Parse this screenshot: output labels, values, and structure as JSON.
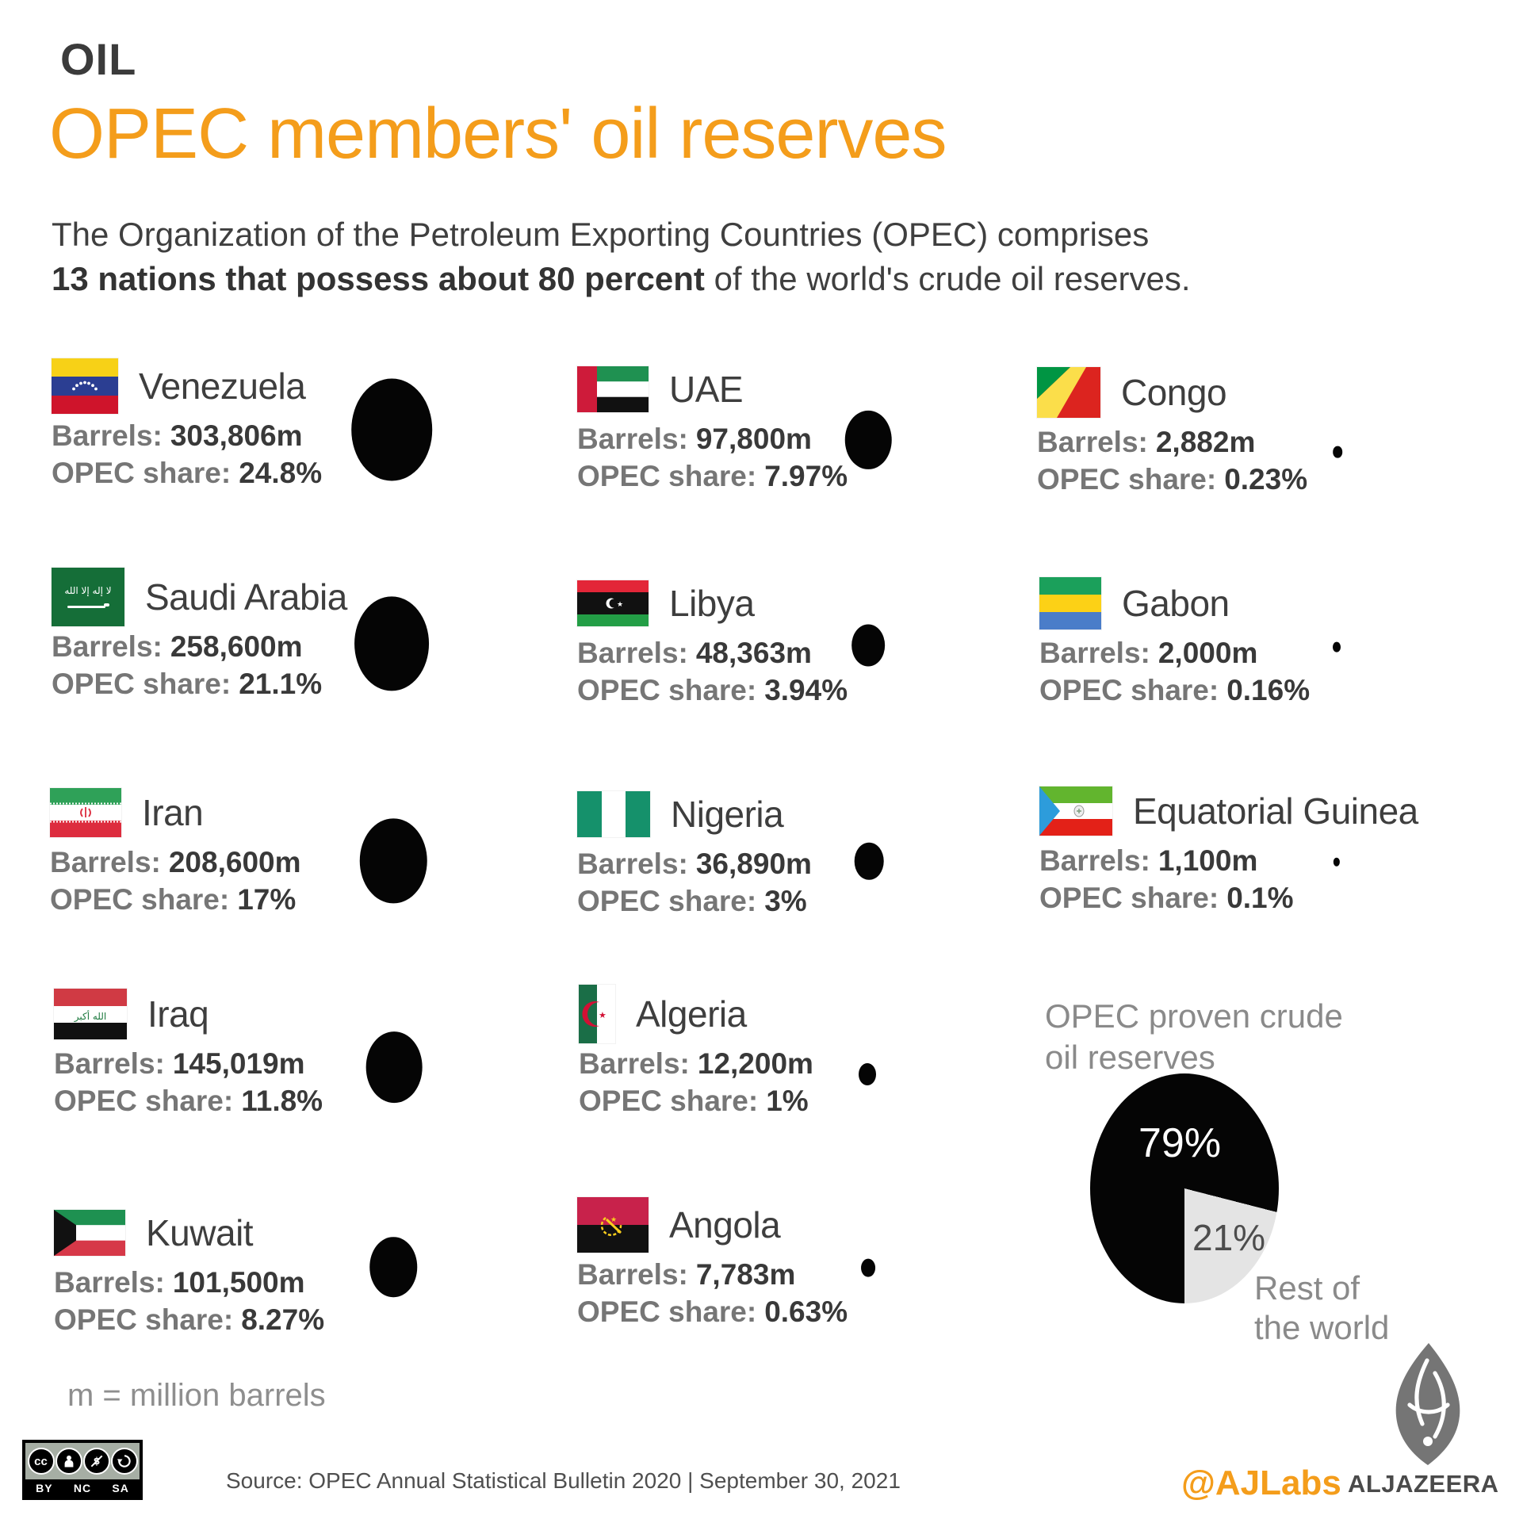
{
  "header": {
    "kicker": "OIL",
    "title": "OPEC members' oil reserves",
    "accent_color": "#F49D1B"
  },
  "intro": {
    "line1": "The Organization of the Petroleum Exporting Countries (OPEC) comprises",
    "line2_bold": "13 nations that possess about 80 percent",
    "line2_rest": " of the world's crude oil reserves."
  },
  "labels": {
    "barrels": "Barrels:",
    "share": "OPEC share:"
  },
  "countries": [
    {
      "name": "Venezuela",
      "barrels": "303,806m",
      "share": "24.8%",
      "share_value": 24.8
    },
    {
      "name": "UAE",
      "barrels": "97,800m",
      "share": "7.97%",
      "share_value": 7.97
    },
    {
      "name": "Congo",
      "barrels": "2,882m",
      "share": "0.23%",
      "share_value": 0.23
    },
    {
      "name": "Saudi Arabia",
      "barrels": "258,600m",
      "share": "21.1%",
      "share_value": 21.1
    },
    {
      "name": "Libya",
      "barrels": "48,363m",
      "share": "3.94%",
      "share_value": 3.94
    },
    {
      "name": "Gabon",
      "barrels": "2,000m",
      "share": "0.16%",
      "share_value": 0.16
    },
    {
      "name": "Iran",
      "barrels": "208,600m",
      "share": "17%",
      "share_value": 17
    },
    {
      "name": "Nigeria",
      "barrels": "36,890m",
      "share": "3%",
      "share_value": 3
    },
    {
      "name": "Equatorial Guinea",
      "barrels": "1,100m",
      "share": "0.1%",
      "share_value": 0.1
    },
    {
      "name": "Iraq",
      "barrels": "145,019m",
      "share": "11.8%",
      "share_value": 11.8
    },
    {
      "name": "Algeria",
      "barrels": "12,200m",
      "share": "1%",
      "share_value": 1
    },
    {
      "name": "Kuwait",
      "barrels": "101,500m",
      "share": "8.27%",
      "share_value": 8.27
    },
    {
      "name": "Angola",
      "barrels": "7,783m",
      "share": "0.63%",
      "share_value": 0.63
    }
  ],
  "pie": {
    "heading_line1": "OPEC proven crude",
    "heading_line2": "oil reserves",
    "opec_label": "79%",
    "opec_value": 79,
    "row_label": "21%",
    "row_value": 21,
    "rest_line1": "Rest of",
    "rest_line2": "the world",
    "slice_color_opec": "#050505",
    "slice_color_rest": "#E4E4E4"
  },
  "footnote": "m = million barrels",
  "footer": {
    "source": "Source:  OPEC Annual Statistical Bulletin 2020 |  September 30, 2021",
    "cc_license": "CC BY-NC-SA",
    "cc_labels": [
      "BY",
      "NC",
      "SA"
    ],
    "credit_handle": "@AJLabs",
    "brand": "ALJAZEERA"
  },
  "chart_data": [
    {
      "type": "scatter",
      "subtype": "proportional-bubbles",
      "title": "OPEC members' oil reserves",
      "categories": [
        "Venezuela",
        "UAE",
        "Congo",
        "Saudi Arabia",
        "Libya",
        "Gabon",
        "Iran",
        "Nigeria",
        "Equatorial Guinea",
        "Iraq",
        "Algeria",
        "Kuwait",
        "Angola"
      ],
      "series": [
        {
          "name": "Barrels (million)",
          "values": [
            303806,
            97800,
            2882,
            258600,
            48363,
            2000,
            208600,
            36890,
            1100,
            145019,
            12200,
            101500,
            7783
          ]
        },
        {
          "name": "OPEC share (%)",
          "values": [
            24.8,
            7.97,
            0.23,
            21.1,
            3.94,
            0.16,
            17,
            3,
            0.1,
            11.8,
            1,
            8.27,
            0.63
          ]
        }
      ],
      "note": "m = million barrels; bubble area proportional to OPEC share"
    },
    {
      "type": "pie",
      "title": "OPEC proven crude oil reserves",
      "categories": [
        "OPEC",
        "Rest of the world"
      ],
      "values": [
        79,
        21
      ],
      "colors": [
        "#050505",
        "#E4E4E4"
      ],
      "labels": [
        "79%",
        "21%"
      ]
    }
  ]
}
